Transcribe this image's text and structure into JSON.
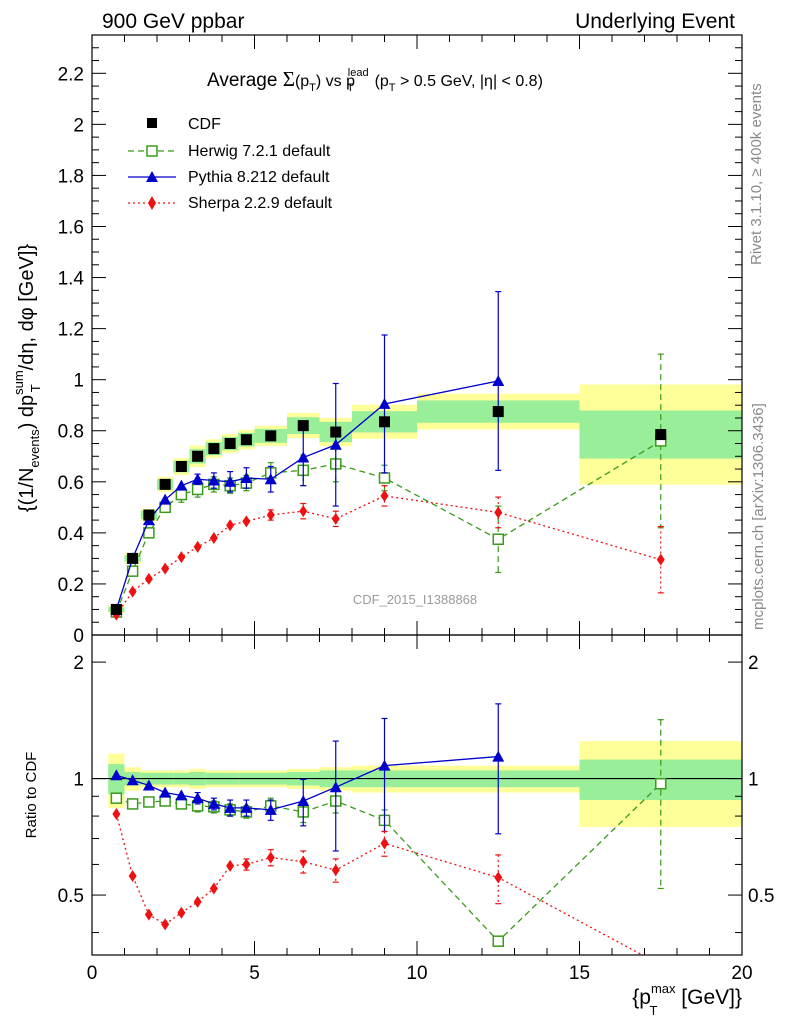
{
  "header": {
    "left": "900 GeV ppbar",
    "right": "Underlying Event"
  },
  "side": {
    "top": "Rivet 3.1.10, ≥ 400k events",
    "bottom": "mcplots.cern.ch [arXiv:1306.3436]"
  },
  "chart_data": {
    "type": "scatter",
    "title_parts": {
      "lead": "Average ",
      "sigma": "Σ",
      "paren_open": "(p",
      "sub_T": "T",
      "paren_close": ") vs p",
      "sup_lead": "lead",
      "cut_open": "(p",
      "cut_rest": " > 0.5 GeV, |η| < 0.8)"
    },
    "ylabel_parts": {
      "a": "{(1/N",
      "a_sub": "events",
      "b": ") dp",
      "b_sup": "sum",
      "b_sub": "T",
      "c": "/dη, dφ [GeV]}"
    },
    "xlabel_parts": {
      "a": "{p",
      "sup": "max",
      "sub": "T",
      "b": " [GeV]}"
    },
    "ratio_ylabel": "Ratio to CDF",
    "watermark": "CDF_2015_I1388868",
    "colors": {
      "data": "#000000",
      "herwig": "#3a9a1a",
      "pythia": "#0000cc",
      "sherpa": "#ee1111",
      "band_outer": "#ffff99",
      "band_inner": "#99ee99"
    },
    "main": {
      "xlim": [
        0,
        20
      ],
      "ylim": [
        0,
        2.35
      ],
      "yticks": [
        "0",
        "0.2",
        "0.4",
        "0.6",
        "0.8",
        "1",
        "1.2",
        "1.4",
        "1.6",
        "1.8",
        "2",
        "2.2"
      ],
      "ytick_values": [
        0,
        0.2,
        0.4,
        0.6,
        0.8,
        1,
        1.2,
        1.4,
        1.6,
        1.8,
        2,
        2.2
      ]
    },
    "ratio": {
      "xlim": [
        0,
        20
      ],
      "ylim": [
        0.35,
        2.35
      ],
      "log": true,
      "ytick_values": [
        0.5,
        1,
        2
      ],
      "ytick_labels": [
        "0.5",
        "1",
        "2"
      ]
    },
    "xticks": [
      "0",
      "5",
      "10",
      "15",
      "20"
    ],
    "xtick_values": [
      0,
      5,
      10,
      15,
      20
    ],
    "x_bins": [
      [
        0.5,
        1
      ],
      [
        1,
        1.5
      ],
      [
        1.5,
        2
      ],
      [
        2,
        2.5
      ],
      [
        2.5,
        3
      ],
      [
        3,
        3.5
      ],
      [
        3.5,
        4
      ],
      [
        4,
        4.5
      ],
      [
        4.5,
        5
      ],
      [
        5,
        6
      ],
      [
        6,
        7
      ],
      [
        7,
        8
      ],
      [
        8,
        10
      ],
      [
        10,
        15
      ],
      [
        15,
        20
      ]
    ],
    "x": [
      0.75,
      1.25,
      1.75,
      2.25,
      2.75,
      3.25,
      3.75,
      4.25,
      4.75,
      5.5,
      6.5,
      7.5,
      9,
      12.5,
      17.5
    ],
    "series": [
      {
        "key": "data",
        "name": "CDF",
        "marker": "square-filled",
        "y": [
          0.1,
          0.3,
          0.47,
          0.59,
          0.66,
          0.7,
          0.73,
          0.75,
          0.765,
          0.78,
          0.82,
          0.795,
          0.835,
          0.875,
          0.785
        ],
        "band_outer": [
          0.16,
          0.07,
          0.05,
          0.05,
          0.05,
          0.06,
          0.05,
          0.05,
          0.05,
          0.05,
          0.06,
          0.07,
          0.08,
          0.08,
          0.25
        ],
        "band_inner": [
          0.09,
          0.04,
          0.035,
          0.035,
          0.035,
          0.04,
          0.035,
          0.035,
          0.035,
          0.035,
          0.04,
          0.05,
          0.05,
          0.05,
          0.12
        ]
      },
      {
        "key": "herwig",
        "name": "Herwig 7.2.1 default",
        "marker": "square-open",
        "dash": "6,4",
        "y": [
          0.09,
          0.25,
          0.4,
          0.5,
          0.55,
          0.57,
          0.59,
          0.585,
          0.595,
          0.635,
          0.645,
          0.67,
          0.615,
          0.375,
          0.76
        ],
        "err": [
          0,
          0,
          0,
          0,
          0.03,
          0.03,
          0.03,
          0.03,
          0.03,
          0.04,
          0.06,
          0.07,
          0.05,
          0.13,
          0.34
        ],
        "ratio": [
          0.89,
          0.86,
          0.87,
          0.875,
          0.86,
          0.85,
          0.845,
          0.83,
          0.82,
          0.85,
          0.82,
          0.875,
          0.78,
          0.38,
          0.97
        ],
        "ratio_err": [
          0,
          0,
          0,
          0,
          0.02,
          0.03,
          0.03,
          0.03,
          0.03,
          0.04,
          0.05,
          0.06,
          0.05,
          0.0,
          0.45
        ]
      },
      {
        "key": "pythia",
        "name": "Pythia 8.212 default",
        "marker": "triangle-filled",
        "dash": "",
        "y": [
          0.1,
          0.3,
          0.45,
          0.53,
          0.585,
          0.61,
          0.605,
          0.6,
          0.615,
          0.61,
          0.695,
          0.745,
          0.905,
          0.995,
          null
        ],
        "err": [
          0,
          0,
          0,
          0,
          0,
          0.02,
          0.03,
          0.04,
          0.04,
          0.05,
          0.11,
          0.24,
          0.27,
          0.35,
          0
        ],
        "ratio": [
          1.02,
          0.99,
          0.96,
          0.92,
          0.905,
          0.89,
          0.86,
          0.84,
          0.84,
          0.83,
          0.875,
          0.95,
          1.08,
          1.14,
          null
        ],
        "ratio_err": [
          0,
          0,
          0,
          0,
          0,
          0.03,
          0.03,
          0.04,
          0.04,
          0.05,
          0.12,
          0.3,
          0.35,
          0.42,
          0
        ]
      },
      {
        "key": "sherpa",
        "name": "Sherpa 2.2.9 default",
        "marker": "diamond-filled",
        "dash": "2,3",
        "y": [
          0.08,
          0.17,
          0.22,
          0.26,
          0.305,
          0.345,
          0.38,
          0.43,
          0.445,
          0.47,
          0.485,
          0.455,
          0.545,
          0.48,
          0.295
        ],
        "err": [
          0,
          0,
          0,
          0,
          0,
          0,
          0,
          0,
          0,
          0.02,
          0.03,
          0.03,
          0.04,
          0.06,
          0.13
        ],
        "ratio": [
          0.81,
          0.56,
          0.445,
          0.42,
          0.45,
          0.48,
          0.52,
          0.595,
          0.6,
          0.625,
          0.61,
          0.58,
          0.68,
          0.555,
          0.33
        ],
        "ratio_err": [
          0,
          0,
          0,
          0,
          0,
          0,
          0,
          0,
          0.02,
          0.03,
          0.04,
          0.04,
          0.05,
          0.08,
          0
        ]
      }
    ],
    "legend_position": "top-left"
  }
}
